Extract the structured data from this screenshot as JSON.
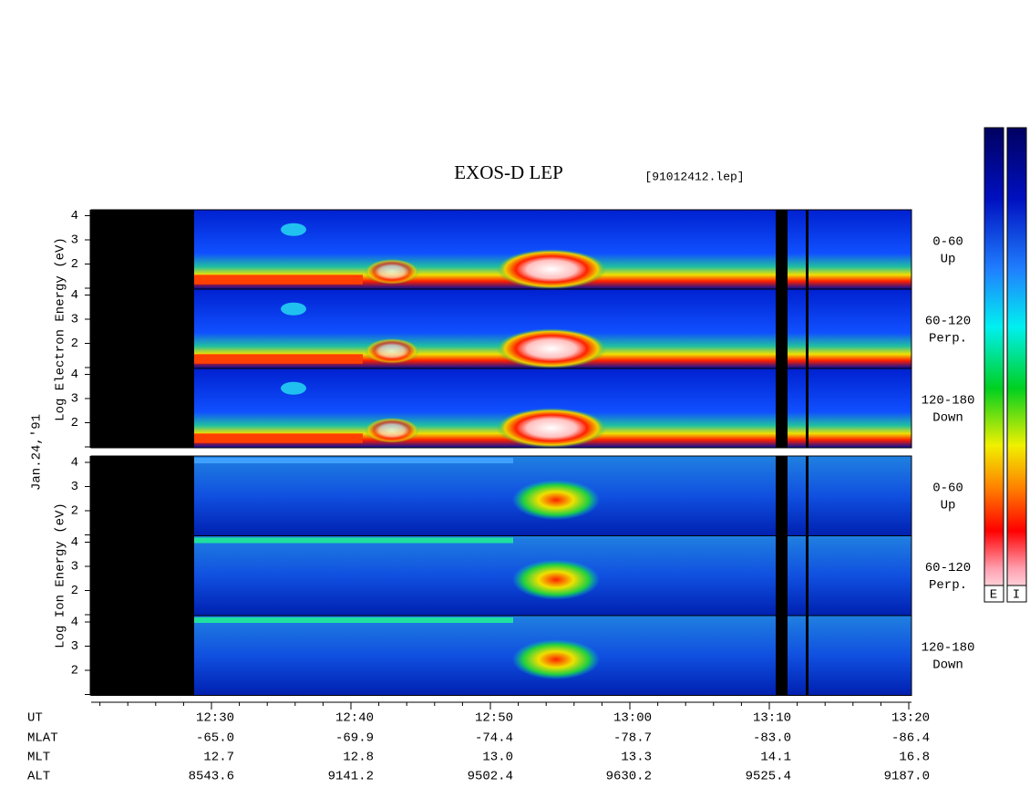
{
  "title": "EXOS-D LEP",
  "file": "[91012412.lep]",
  "electron_ylabel": "Log  Electron  Energy  (eV)",
  "ion_ylabel": "Log  Ion  Energy  (eV)",
  "date": "Jan.24,'91",
  "yticks": [
    "2",
    "3",
    "4"
  ],
  "panels": [
    {
      "label": "0-60",
      "sub": "Up"
    },
    {
      "label": "60-120",
      "sub": "Perp."
    },
    {
      "label": "120-180",
      "sub": "Down"
    }
  ],
  "rows": [
    {
      "name": "UT",
      "values": [
        "12:30",
        "12:40",
        "12:50",
        "13:00",
        "13:10",
        "13:20"
      ]
    },
    {
      "name": "MLAT",
      "values": [
        "-65.0",
        "-69.9",
        "-74.4",
        "-78.7",
        "-83.0",
        "-86.4"
      ]
    },
    {
      "name": "MLT",
      "values": [
        "12.7",
        "12.8",
        "13.0",
        "13.3",
        "14.1",
        "16.8"
      ]
    },
    {
      "name": "ALT",
      "values": [
        "8543.6",
        "9141.2",
        "9502.4",
        "9630.2",
        "9525.4",
        "9187.0"
      ]
    }
  ],
  "colorbar": [
    "E",
    "I"
  ]
}
